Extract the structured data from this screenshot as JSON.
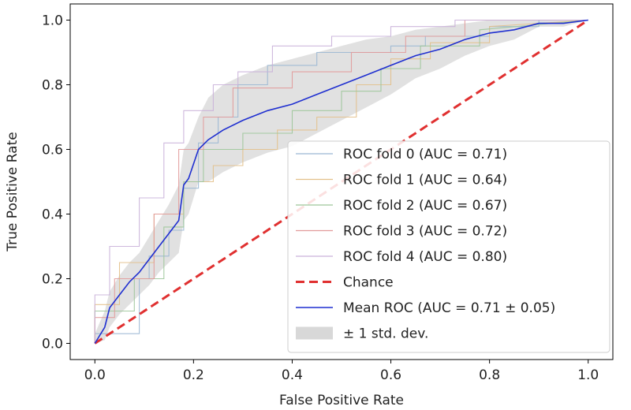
{
  "chart_data": {
    "type": "line",
    "title": "",
    "xlabel": "False Positive Rate",
    "ylabel": "True Positive Rate",
    "xlim": [
      -0.05,
      1.05
    ],
    "ylim": [
      -0.05,
      1.05
    ],
    "xticks": [
      "0.0",
      "0.2",
      "0.4",
      "0.6",
      "0.8",
      "1.0"
    ],
    "yticks": [
      "0.0",
      "0.2",
      "0.4",
      "0.6",
      "0.8",
      "1.0"
    ],
    "grid": false,
    "legend_position": "lower-right",
    "series": [
      {
        "name": "ROC fold 0 (AUC = 0.71)",
        "color": "#9ab7d3",
        "style": "step",
        "x": [
          0.0,
          0.0,
          0.09,
          0.09,
          0.11,
          0.11,
          0.15,
          0.15,
          0.18,
          0.18,
          0.21,
          0.21,
          0.25,
          0.25,
          0.29,
          0.29,
          0.35,
          0.35,
          0.45,
          0.45,
          0.6,
          0.6,
          0.67,
          0.67,
          0.8,
          0.8,
          0.9,
          0.9,
          1.0
        ],
        "y": [
          0.0,
          0.03,
          0.03,
          0.2,
          0.2,
          0.27,
          0.27,
          0.35,
          0.35,
          0.48,
          0.48,
          0.62,
          0.62,
          0.7,
          0.7,
          0.8,
          0.8,
          0.86,
          0.86,
          0.9,
          0.9,
          0.92,
          0.92,
          0.95,
          0.95,
          0.98,
          0.98,
          1.0,
          1.0
        ]
      },
      {
        "name": "ROC fold 1 (AUC = 0.64)",
        "color": "#e3c08a",
        "style": "step",
        "x": [
          0.0,
          0.0,
          0.05,
          0.05,
          0.12,
          0.12,
          0.18,
          0.18,
          0.24,
          0.24,
          0.3,
          0.3,
          0.37,
          0.37,
          0.45,
          0.45,
          0.53,
          0.53,
          0.6,
          0.6,
          0.68,
          0.68,
          0.8,
          0.8,
          1.0
        ],
        "y": [
          0.0,
          0.12,
          0.12,
          0.25,
          0.25,
          0.4,
          0.4,
          0.5,
          0.5,
          0.55,
          0.55,
          0.6,
          0.6,
          0.66,
          0.66,
          0.7,
          0.7,
          0.8,
          0.8,
          0.88,
          0.88,
          0.93,
          0.93,
          0.98,
          1.0
        ]
      },
      {
        "name": "ROC fold 2 (AUC = 0.67)",
        "color": "#9dc79a",
        "style": "step",
        "x": [
          0.0,
          0.0,
          0.08,
          0.08,
          0.14,
          0.14,
          0.18,
          0.18,
          0.22,
          0.22,
          0.3,
          0.3,
          0.4,
          0.4,
          0.5,
          0.5,
          0.58,
          0.58,
          0.66,
          0.66,
          0.78,
          0.78,
          1.0
        ],
        "y": [
          0.0,
          0.1,
          0.1,
          0.2,
          0.2,
          0.36,
          0.36,
          0.5,
          0.5,
          0.6,
          0.6,
          0.65,
          0.65,
          0.72,
          0.72,
          0.78,
          0.78,
          0.85,
          0.85,
          0.92,
          0.92,
          0.97,
          1.0
        ]
      },
      {
        "name": "ROC fold 3 (AUC = 0.72)",
        "color": "#e29a9a",
        "style": "step",
        "x": [
          0.0,
          0.0,
          0.04,
          0.04,
          0.12,
          0.12,
          0.17,
          0.17,
          0.22,
          0.22,
          0.28,
          0.28,
          0.4,
          0.4,
          0.52,
          0.52,
          0.63,
          0.63,
          0.75,
          0.75,
          1.0
        ],
        "y": [
          0.0,
          0.08,
          0.08,
          0.2,
          0.2,
          0.4,
          0.4,
          0.6,
          0.6,
          0.7,
          0.7,
          0.79,
          0.79,
          0.84,
          0.84,
          0.9,
          0.9,
          0.95,
          0.95,
          1.0,
          1.0
        ]
      },
      {
        "name": "ROC fold 4 (AUC = 0.80)",
        "color": "#c9b0d9",
        "style": "step",
        "x": [
          0.0,
          0.0,
          0.03,
          0.03,
          0.09,
          0.09,
          0.14,
          0.14,
          0.18,
          0.18,
          0.24,
          0.24,
          0.29,
          0.29,
          0.36,
          0.36,
          0.48,
          0.48,
          0.6,
          0.6,
          0.73,
          0.73,
          1.0
        ],
        "y": [
          0.0,
          0.15,
          0.15,
          0.3,
          0.3,
          0.45,
          0.45,
          0.62,
          0.62,
          0.72,
          0.72,
          0.8,
          0.8,
          0.84,
          0.84,
          0.92,
          0.92,
          0.95,
          0.95,
          0.98,
          0.98,
          1.0,
          1.0
        ]
      },
      {
        "name": "Chance",
        "color": "#e03030",
        "style": "dashed",
        "x": [
          0.0,
          1.0
        ],
        "y": [
          0.0,
          1.0
        ]
      },
      {
        "name": "Mean ROC (AUC = 0.71 ± 0.05)",
        "color": "#1f2fd0",
        "style": "solid",
        "x": [
          0.0,
          0.02,
          0.03,
          0.05,
          0.07,
          0.09,
          0.11,
          0.13,
          0.15,
          0.17,
          0.18,
          0.19,
          0.21,
          0.23,
          0.26,
          0.3,
          0.35,
          0.4,
          0.45,
          0.5,
          0.55,
          0.6,
          0.65,
          0.7,
          0.75,
          0.8,
          0.85,
          0.9,
          0.95,
          1.0
        ],
        "y": [
          0.0,
          0.05,
          0.11,
          0.15,
          0.19,
          0.22,
          0.26,
          0.3,
          0.34,
          0.38,
          0.49,
          0.51,
          0.6,
          0.63,
          0.66,
          0.69,
          0.72,
          0.74,
          0.77,
          0.8,
          0.83,
          0.86,
          0.89,
          0.91,
          0.94,
          0.96,
          0.97,
          0.99,
          0.99,
          1.0
        ]
      }
    ],
    "std_band": {
      "name": "± 1 std. dev.",
      "color": "#c8c8c8",
      "x": [
        0.0,
        0.02,
        0.03,
        0.05,
        0.07,
        0.09,
        0.11,
        0.13,
        0.15,
        0.17,
        0.18,
        0.19,
        0.21,
        0.23,
        0.26,
        0.3,
        0.35,
        0.4,
        0.45,
        0.5,
        0.55,
        0.6,
        0.65,
        0.7,
        0.75,
        0.8,
        0.85,
        0.9,
        0.95,
        1.0
      ],
      "upper": [
        0.03,
        0.1,
        0.16,
        0.21,
        0.25,
        0.28,
        0.33,
        0.38,
        0.43,
        0.49,
        0.6,
        0.62,
        0.7,
        0.76,
        0.8,
        0.83,
        0.86,
        0.88,
        0.9,
        0.92,
        0.94,
        0.95,
        0.97,
        0.98,
        0.99,
        1.0,
        1.0,
        1.0,
        1.0,
        1.0
      ],
      "lower": [
        0.0,
        0.01,
        0.05,
        0.09,
        0.12,
        0.15,
        0.18,
        0.22,
        0.25,
        0.28,
        0.38,
        0.4,
        0.5,
        0.5,
        0.53,
        0.56,
        0.59,
        0.61,
        0.65,
        0.69,
        0.73,
        0.77,
        0.82,
        0.85,
        0.89,
        0.92,
        0.94,
        0.98,
        0.98,
        1.0
      ]
    }
  }
}
